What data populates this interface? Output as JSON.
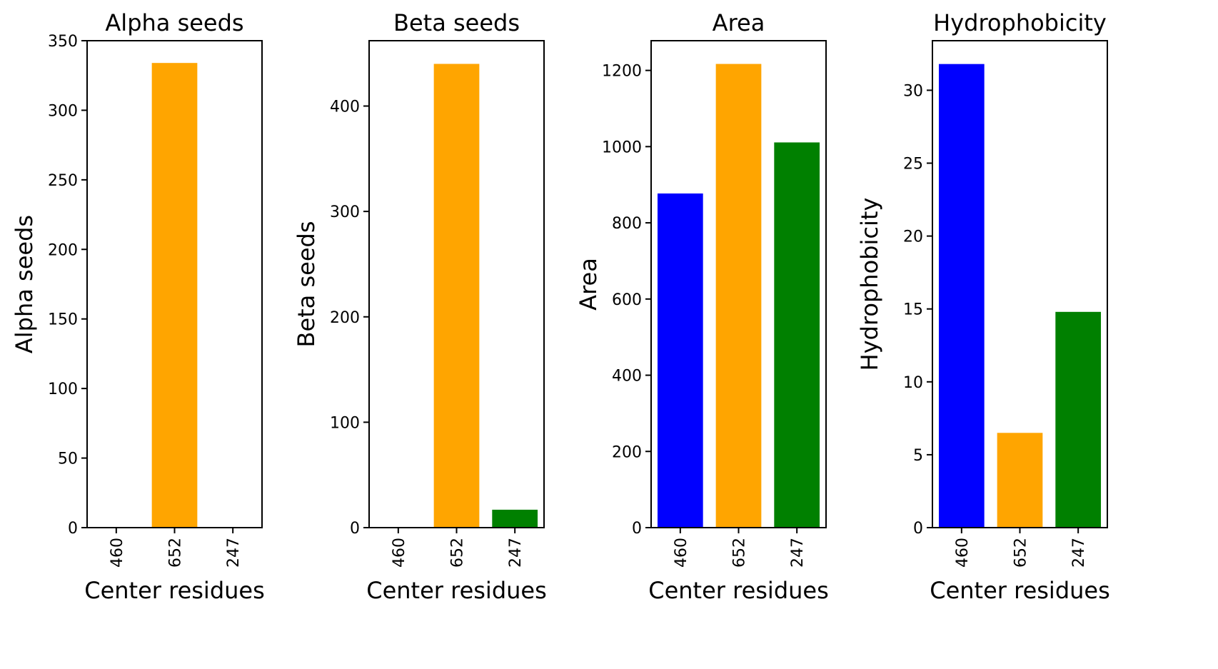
{
  "chart_data": [
    {
      "type": "bar",
      "title": "Alpha seeds",
      "xlabel": "Center residues",
      "ylabel": "Alpha seeds",
      "categories": [
        "460",
        "652",
        "247"
      ],
      "values": [
        0,
        334,
        0
      ],
      "colors": [
        "#0000ff",
        "#ffa500",
        "#008000"
      ],
      "ylim": [
        0,
        350
      ],
      "yticks": [
        0,
        50,
        100,
        150,
        200,
        250,
        300,
        350
      ],
      "grid": false
    },
    {
      "type": "bar",
      "title": "Beta seeds",
      "xlabel": "Center residues",
      "ylabel": "Beta seeds",
      "categories": [
        "460",
        "652",
        "247"
      ],
      "values": [
        0,
        440,
        17
      ],
      "colors": [
        "#0000ff",
        "#ffa500",
        "#008000"
      ],
      "ylim": [
        0,
        462
      ],
      "yticks": [
        0,
        100,
        200,
        300,
        400
      ],
      "grid": false
    },
    {
      "type": "bar",
      "title": "Area",
      "xlabel": "Center residues",
      "ylabel": "Area",
      "categories": [
        "460",
        "652",
        "247"
      ],
      "values": [
        877,
        1217,
        1011
      ],
      "colors": [
        "#0000ff",
        "#ffa500",
        "#008000"
      ],
      "ylim": [
        0,
        1278
      ],
      "yticks": [
        0,
        200,
        400,
        600,
        800,
        1000,
        1200
      ],
      "grid": false
    },
    {
      "type": "bar",
      "title": "Hydrophobicity",
      "xlabel": "Center residues",
      "ylabel": "Hydrophobicity",
      "categories": [
        "460",
        "652",
        "247"
      ],
      "values": [
        31.8,
        6.5,
        14.8
      ],
      "colors": [
        "#0000ff",
        "#ffa500",
        "#008000"
      ],
      "ylim": [
        0,
        33.4
      ],
      "yticks": [
        0,
        5,
        10,
        15,
        20,
        25,
        30
      ],
      "grid": false
    }
  ]
}
